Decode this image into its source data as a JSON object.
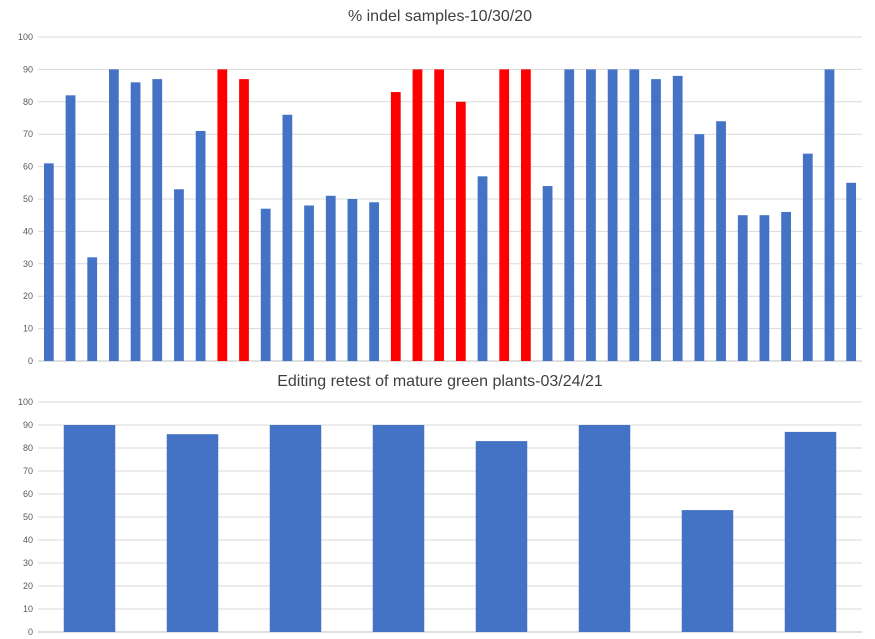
{
  "chart_data": [
    {
      "type": "bar",
      "title": "% indel samples-10/30/20",
      "xlabel": "",
      "ylabel": "",
      "ylim": [
        0,
        100
      ],
      "yticks": [
        0,
        10,
        20,
        30,
        40,
        50,
        60,
        70,
        80,
        90,
        100
      ],
      "grid": true,
      "legend": "none",
      "colors": {
        "default": "#4472c4",
        "highlight": "#ff0000"
      },
      "values": [
        61,
        82,
        32,
        90,
        86,
        87,
        53,
        71,
        90,
        87,
        47,
        76,
        48,
        51,
        50,
        49,
        83,
        90,
        90,
        80,
        57,
        90,
        90,
        54,
        90,
        90,
        90,
        90,
        87,
        88,
        70,
        74,
        45,
        45,
        46,
        64,
        90,
        55
      ],
      "highlighted": [
        false,
        false,
        false,
        false,
        false,
        false,
        false,
        false,
        true,
        true,
        false,
        false,
        false,
        false,
        false,
        false,
        true,
        true,
        true,
        true,
        false,
        true,
        true,
        false,
        false,
        false,
        false,
        false,
        false,
        false,
        false,
        false,
        false,
        false,
        false,
        false,
        false,
        false
      ]
    },
    {
      "type": "bar",
      "title": "Editing retest of mature green plants-03/24/21",
      "xlabel": "",
      "ylabel": "",
      "ylim": [
        0,
        100
      ],
      "yticks": [
        0,
        10,
        20,
        30,
        40,
        50,
        60,
        70,
        80,
        90,
        100
      ],
      "grid": true,
      "legend": "none",
      "colors": {
        "default": "#4472c4"
      },
      "values": [
        90,
        86,
        90,
        90,
        83,
        90,
        53,
        87
      ]
    }
  ]
}
